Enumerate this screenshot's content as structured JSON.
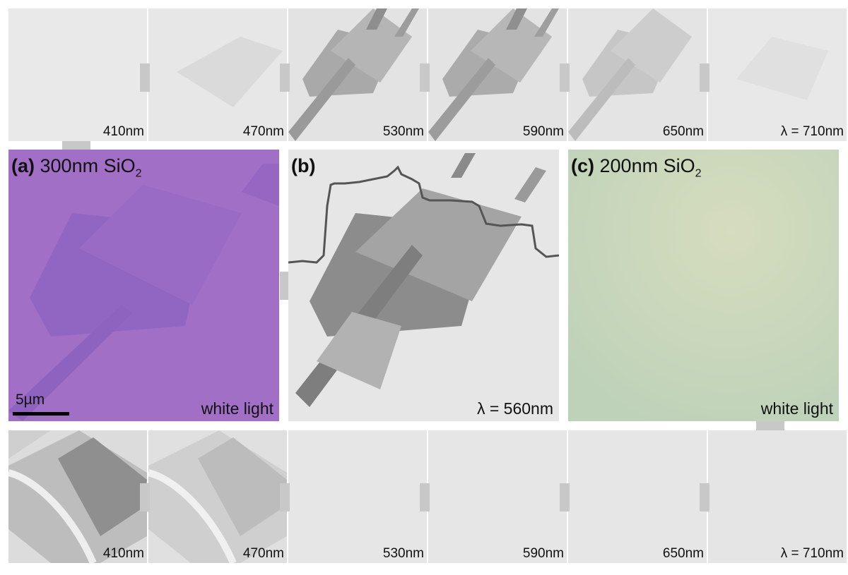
{
  "top_row": [
    {
      "label": "410nm"
    },
    {
      "label": "470nm"
    },
    {
      "label": "530nm"
    },
    {
      "label": "590nm"
    },
    {
      "label": "650nm"
    },
    {
      "label": "λ = 710nm"
    }
  ],
  "bottom_row": [
    {
      "label": "410nm"
    },
    {
      "label": "470nm"
    },
    {
      "label": "530nm"
    },
    {
      "label": "590nm"
    },
    {
      "label": "650nm"
    },
    {
      "label": "λ = 710nm"
    }
  ],
  "panel_a": {
    "tag": "(a)",
    "title": "300nm SiO",
    "subscript": "2",
    "corner": "white light",
    "scale": "5µm",
    "color": "#a16fc6"
  },
  "panel_b": {
    "tag": "(b)",
    "corner": "λ = 560nm"
  },
  "panel_c": {
    "tag": "(c)",
    "title": "200nm SiO",
    "subscript": "2",
    "corner": "white light",
    "color": "#c5d4b8"
  }
}
